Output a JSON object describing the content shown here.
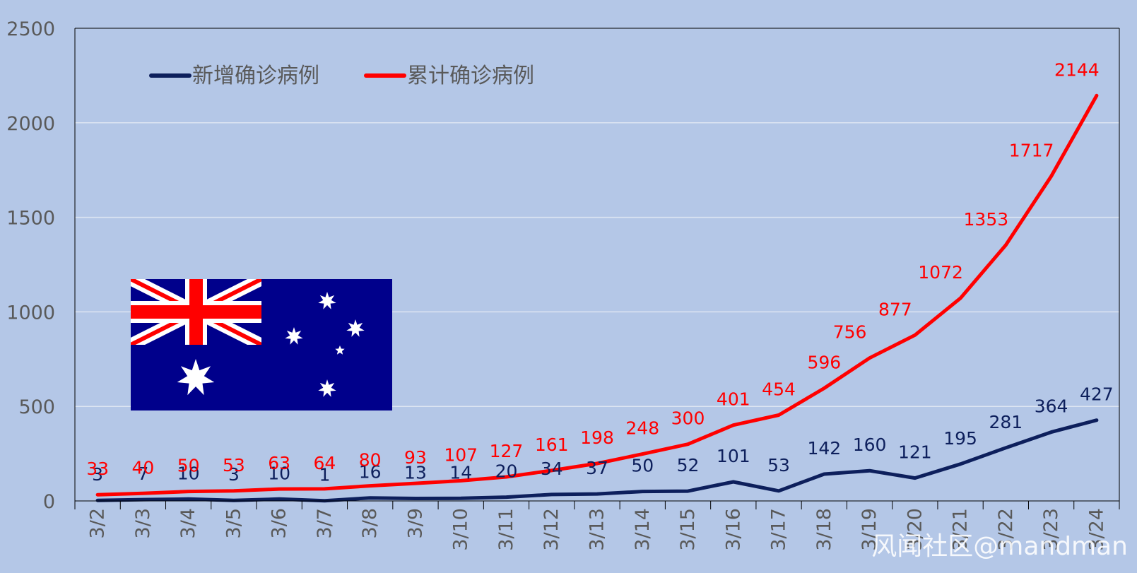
{
  "chart_data": {
    "type": "line",
    "categories": [
      "3/2",
      "3/3",
      "3/4",
      "3/5",
      "3/6",
      "3/7",
      "3/8",
      "3/9",
      "3/10",
      "3/11",
      "3/12",
      "3/13",
      "3/14",
      "3/15",
      "3/16",
      "3/17",
      "3/18",
      "3/19",
      "3/20",
      "3/21",
      "3/22",
      "3/23",
      "3/24"
    ],
    "ylim": [
      0,
      2500
    ],
    "yticks": [
      0,
      500,
      1000,
      1500,
      2000,
      2500
    ],
    "grid": true,
    "legend_position": "top-left",
    "series": [
      {
        "name": "新增确诊病例",
        "color": "#0d1f5c",
        "values": [
          3,
          7,
          10,
          3,
          10,
          1,
          16,
          13,
          14,
          20,
          34,
          37,
          50,
          52,
          101,
          53,
          142,
          160,
          121,
          195,
          281,
          364,
          427
        ]
      },
      {
        "name": "累计确诊病例",
        "color": "#ff0000",
        "values": [
          33,
          40,
          50,
          53,
          63,
          64,
          80,
          93,
          107,
          127,
          161,
          198,
          248,
          300,
          401,
          454,
          596,
          756,
          877,
          1072,
          1353,
          1717,
          2144
        ]
      }
    ]
  },
  "watermark": "风闻社区@mandman",
  "flag_icon": "australia-flag-icon",
  "colors": {
    "background": "#b4c7e7",
    "flag_blue": "#00008b",
    "flag_red": "#ff0000"
  }
}
